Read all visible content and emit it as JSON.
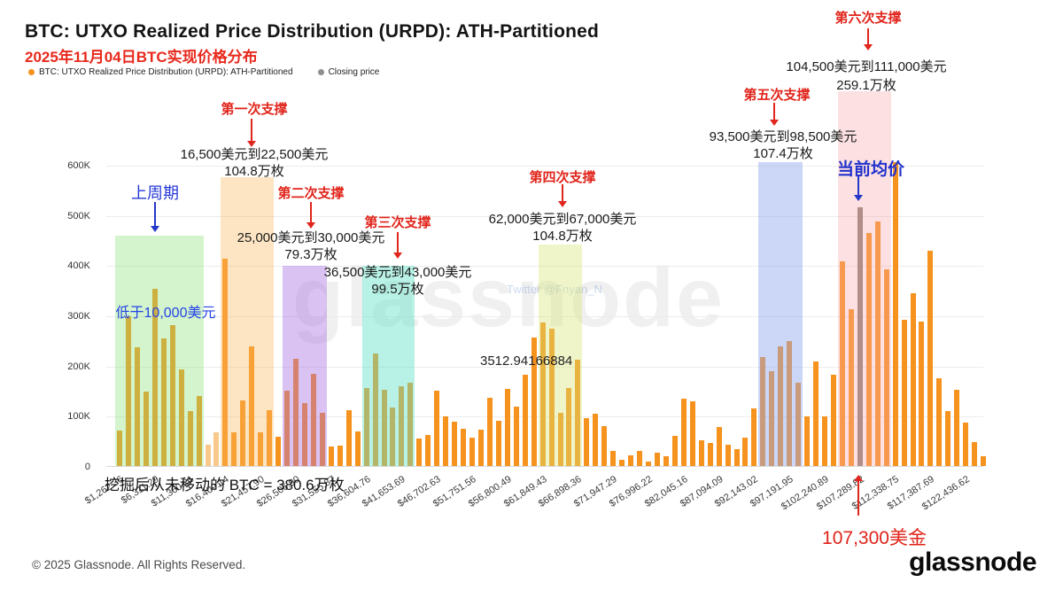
{
  "header": {
    "title": "BTC: UTXO Realized Price Distribution (URPD): ATH-Partitioned",
    "subtitle": "2025年11月04日BTC实现价格分布",
    "legend": [
      {
        "label": "BTC: UTXO Realized Price Distribution (URPD): ATH-Partitioned",
        "color": "#F6921E"
      },
      {
        "label": "Closing price",
        "color": "#8E8E8E"
      }
    ]
  },
  "chart_data": {
    "type": "bar",
    "y_unit": "BTC supply in thousands (K)",
    "ylim": [
      0,
      600
    ],
    "y_ticks": [
      {
        "value_k": 0,
        "label": "0"
      },
      {
        "value_k": 100,
        "label": "100K"
      },
      {
        "value_k": 200,
        "label": "200K"
      },
      {
        "value_k": 300,
        "label": "300K"
      },
      {
        "value_k": 400,
        "label": "400K"
      },
      {
        "value_k": 500,
        "label": "500K"
      },
      {
        "value_k": 600,
        "label": "600K"
      }
    ],
    "x_labels": [
      "$1,262.36",
      "$6,311.29",
      "$11,360.21",
      "$16,409.14",
      "$21,457.90",
      "$26,506.90",
      "$31,555.87",
      "$36,604.76",
      "$41,653.69",
      "$46,702.63",
      "$51,751.56",
      "$56,800.49",
      "$61,849.43",
      "$66,898.36",
      "$71,947.29",
      "$76,996.22",
      "$82,045.16",
      "$87,094.09",
      "$92,143.02",
      "$97,191.95",
      "$102,240.89",
      "$107,289.82",
      "$112,338.75",
      "$117,387.69",
      "$122,436.62"
    ],
    "values_k": [
      71,
      299,
      236,
      148,
      353,
      255,
      280,
      192,
      109,
      139,
      42,
      67,
      413,
      67,
      131,
      239,
      67,
      111,
      58,
      150,
      213,
      125,
      183,
      106,
      39,
      40,
      112,
      68,
      155,
      225,
      152,
      117,
      159,
      166,
      54,
      61,
      150,
      99,
      89,
      75,
      57,
      72,
      136,
      90,
      154,
      118,
      181,
      256,
      286,
      274,
      106,
      156,
      211,
      96,
      104,
      80,
      30,
      12,
      21,
      30,
      9,
      27,
      19,
      60,
      134,
      129,
      51,
      46,
      78,
      43,
      33,
      57,
      115,
      217,
      189,
      239,
      248,
      166,
      99,
      209,
      99,
      181,
      408,
      313,
      515,
      464,
      487,
      391,
      605,
      291,
      344,
      288,
      428,
      175,
      110,
      151,
      86,
      48,
      19
    ],
    "bar_default_color": "#F6921E",
    "special_bars": {
      "pale_indices": [
        10,
        11
      ],
      "pale_color": "#F8C98A",
      "gray_index": 84,
      "gray_color": "#8B7E76"
    },
    "regions": [
      {
        "name": "prev-cycle",
        "start": 0,
        "end": 9,
        "top_k": 460,
        "color": "rgba(140,225,120,0.38)",
        "label": "上周期",
        "range": "低于10,000美元",
        "amount": ""
      },
      {
        "name": "support-1",
        "start": 12,
        "end": 17,
        "top_k": 577,
        "color": "rgba(249,186,98,0.38)",
        "label": "第一次支撑",
        "range": "16,500美元到22,500美元",
        "amount": "104.8万枚"
      },
      {
        "name": "support-2",
        "start": 19,
        "end": 23,
        "top_k": 400,
        "color": "rgba(168,112,224,0.42)",
        "label": "第二次支撑",
        "range": "25,000美元到30,000美元",
        "amount": "79.3万枚"
      },
      {
        "name": "support-3",
        "start": 28,
        "end": 33,
        "top_k": 400,
        "color": "rgba(98,224,198,0.45)",
        "label": "第三次支撑",
        "range": "36,500美元到43,000美元",
        "amount": "99.5万枚"
      },
      {
        "name": "support-4",
        "start": 48,
        "end": 52,
        "top_k": 443,
        "color": "rgba(216,230,120,0.40)",
        "label": "第四次支撑",
        "range": "62,000美元到67,000美元",
        "amount": "104.8万枚"
      },
      {
        "name": "support-5",
        "start": 73,
        "end": 77,
        "top_k": 607,
        "color": "rgba(142,166,238,0.45)",
        "label": "第五次支撑",
        "range": "93,500美元到98,500美元",
        "amount": "107.4万枚"
      },
      {
        "name": "support-6",
        "start": 82,
        "end": 87,
        "top_k": 748,
        "color": "rgba(249,168,172,0.35)",
        "label": "第六次支撑",
        "range": "104,500美元到111,000美元",
        "amount": "259.1万枚"
      }
    ]
  },
  "annotations": {
    "current_avg_label": "当前均价",
    "current_price": "107,300美金",
    "mined_note": "挖掘后从未移动的 BTC = 380.6万枚",
    "stray_value": "3512.94166884",
    "arrow_red": "#e0251c",
    "arrow_blue": "#2437c8"
  },
  "watermarks": {
    "center": "glassnode",
    "twitter": "Twitter @Fnyan_N"
  },
  "footer": {
    "copyright": "© 2025 Glassnode. All Rights Reserved.",
    "logo": "glassnode"
  }
}
